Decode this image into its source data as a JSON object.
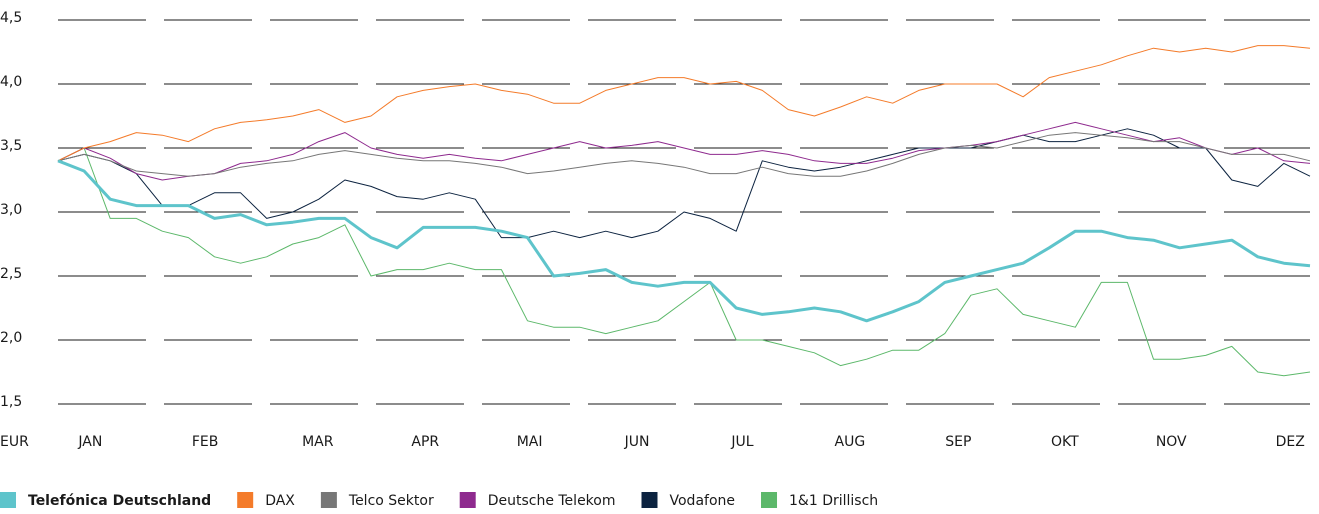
{
  "chart_data": {
    "type": "line",
    "y_unit": "EUR",
    "xlim": [
      0,
      12
    ],
    "xticks": [
      {
        "value": 0.31,
        "label": "JAN"
      },
      {
        "value": 1.41,
        "label": "FEB"
      },
      {
        "value": 2.49,
        "label": "MAR"
      },
      {
        "value": 3.52,
        "label": "APR"
      },
      {
        "value": 4.52,
        "label": "MAI"
      },
      {
        "value": 5.55,
        "label": "JUN"
      },
      {
        "value": 6.56,
        "label": "JUL"
      },
      {
        "value": 7.59,
        "label": "AUG"
      },
      {
        "value": 8.63,
        "label": "SEP"
      },
      {
        "value": 9.65,
        "label": "OKT"
      },
      {
        "value": 10.67,
        "label": "NOV"
      },
      {
        "value": 11.81,
        "label": "DEZ"
      }
    ],
    "ylim": [
      1.5,
      4.5
    ],
    "yticks": [
      {
        "value": 1.5,
        "label": "1,5"
      },
      {
        "value": 2.0,
        "label": "2,0"
      },
      {
        "value": 2.5,
        "label": "2,5"
      },
      {
        "value": 3.0,
        "label": "3,0"
      },
      {
        "value": 3.5,
        "label": "3,5"
      },
      {
        "value": 4.0,
        "label": "4,0"
      },
      {
        "value": 4.5,
        "label": "4,5"
      }
    ],
    "grid": true,
    "legend": "bottom",
    "x": [
      0,
      0.25,
      0.5,
      0.75,
      1,
      1.25,
      1.5,
      1.75,
      2,
      2.25,
      2.5,
      2.75,
      3,
      3.25,
      3.5,
      3.75,
      4,
      4.25,
      4.5,
      4.75,
      5,
      5.25,
      5.5,
      5.75,
      6,
      6.25,
      6.5,
      6.75,
      7,
      7.25,
      7.5,
      7.75,
      8,
      8.25,
      8.5,
      8.75,
      9,
      9.25,
      9.5,
      9.75,
      10,
      10.25,
      10.5,
      10.75,
      11,
      11.25,
      11.5,
      11.75,
      12
    ],
    "series": [
      {
        "name": "Telefónica Deutschland",
        "color": "#5ec4cb",
        "highlight": true,
        "values": [
          3.4,
          3.32,
          3.1,
          3.05,
          3.05,
          3.05,
          2.95,
          2.98,
          2.9,
          2.92,
          2.95,
          2.95,
          2.8,
          2.72,
          2.88,
          2.88,
          2.88,
          2.85,
          2.8,
          2.5,
          2.52,
          2.55,
          2.45,
          2.42,
          2.45,
          2.45,
          2.25,
          2.2,
          2.22,
          2.25,
          2.22,
          2.15,
          2.22,
          2.3,
          2.45,
          2.5,
          2.55,
          2.6,
          2.72,
          2.85,
          2.85,
          2.8,
          2.78,
          2.72,
          2.75,
          2.78,
          2.65,
          2.6,
          2.58
        ]
      },
      {
        "name": "DAX",
        "color": "#f47b2a",
        "values": [
          3.4,
          3.5,
          3.55,
          3.62,
          3.6,
          3.55,
          3.65,
          3.7,
          3.72,
          3.75,
          3.8,
          3.7,
          3.75,
          3.9,
          3.95,
          3.98,
          4.0,
          3.95,
          3.92,
          3.85,
          3.85,
          3.95,
          4.0,
          4.05,
          4.05,
          4.0,
          4.02,
          3.95,
          3.8,
          3.75,
          3.82,
          3.9,
          3.85,
          3.95,
          4.0,
          4.0,
          4.0,
          3.9,
          4.05,
          4.1,
          4.15,
          4.22,
          4.28,
          4.25,
          4.28,
          4.25,
          4.3,
          4.3,
          4.28
        ]
      },
      {
        "name": "Telco Sektor",
        "color": "#777777",
        "values": [
          3.4,
          3.45,
          3.4,
          3.32,
          3.3,
          3.28,
          3.3,
          3.35,
          3.38,
          3.4,
          3.45,
          3.48,
          3.45,
          3.42,
          3.4,
          3.4,
          3.38,
          3.35,
          3.3,
          3.32,
          3.35,
          3.38,
          3.4,
          3.38,
          3.35,
          3.3,
          3.3,
          3.35,
          3.3,
          3.28,
          3.28,
          3.32,
          3.38,
          3.45,
          3.5,
          3.52,
          3.5,
          3.55,
          3.6,
          3.62,
          3.6,
          3.58,
          3.55,
          3.55,
          3.5,
          3.45,
          3.45,
          3.45,
          3.4
        ]
      },
      {
        "name": "Deutsche Telekom",
        "color": "#8e2a8e",
        "values": [
          3.4,
          3.5,
          3.42,
          3.3,
          3.25,
          3.28,
          3.3,
          3.38,
          3.4,
          3.45,
          3.55,
          3.62,
          3.5,
          3.45,
          3.42,
          3.45,
          3.42,
          3.4,
          3.45,
          3.5,
          3.55,
          3.5,
          3.52,
          3.55,
          3.5,
          3.45,
          3.45,
          3.48,
          3.45,
          3.4,
          3.38,
          3.38,
          3.42,
          3.48,
          3.5,
          3.52,
          3.55,
          3.6,
          3.65,
          3.7,
          3.65,
          3.6,
          3.55,
          3.58,
          3.5,
          3.45,
          3.5,
          3.4,
          3.38
        ]
      },
      {
        "name": "Vodafone",
        "color": "#0c2340",
        "values": [
          3.4,
          3.45,
          3.4,
          3.3,
          3.05,
          3.05,
          3.15,
          3.15,
          2.95,
          3.0,
          3.1,
          3.25,
          3.2,
          3.12,
          3.1,
          3.15,
          3.1,
          2.8,
          2.8,
          2.85,
          2.8,
          2.85,
          2.8,
          2.85,
          3.0,
          2.95,
          2.85,
          3.4,
          3.35,
          3.32,
          3.35,
          3.4,
          3.45,
          3.5,
          3.5,
          3.5,
          3.55,
          3.6,
          3.55,
          3.55,
          3.6,
          3.65,
          3.6,
          3.5,
          3.5,
          3.25,
          3.2,
          3.38,
          3.28
        ]
      },
      {
        "name": "1&1 Drillisch",
        "color": "#5cb86a",
        "values": [
          3.4,
          3.5,
          2.95,
          2.95,
          2.85,
          2.8,
          2.65,
          2.6,
          2.65,
          2.75,
          2.8,
          2.9,
          2.5,
          2.55,
          2.55,
          2.6,
          2.55,
          2.55,
          2.15,
          2.1,
          2.1,
          2.05,
          2.1,
          2.15,
          2.3,
          2.45,
          2.0,
          2.0,
          1.95,
          1.9,
          1.8,
          1.85,
          1.92,
          1.92,
          2.05,
          2.35,
          2.4,
          2.2,
          2.15,
          2.1,
          2.45,
          2.45,
          1.85,
          1.85,
          1.88,
          1.95,
          1.75,
          1.72,
          1.75
        ]
      }
    ]
  }
}
